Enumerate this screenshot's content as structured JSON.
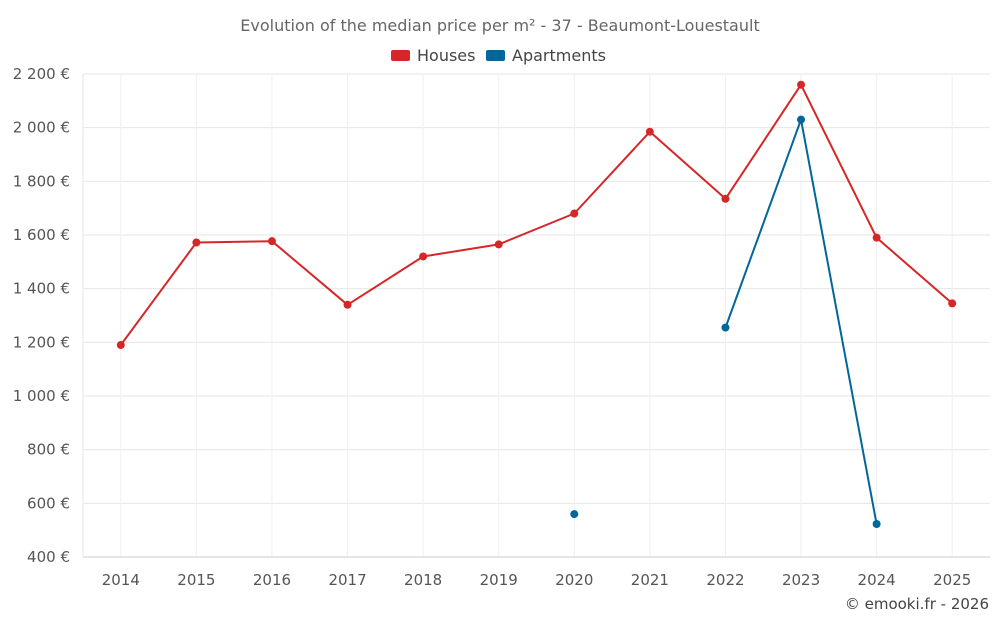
{
  "chart_data": {
    "type": "line",
    "title": "Evolution of the median price per m² - 37 - Beaumont-Louestault",
    "categories": [
      "2014",
      "2015",
      "2016",
      "2017",
      "2018",
      "2019",
      "2020",
      "2021",
      "2022",
      "2023",
      "2024",
      "2025"
    ],
    "y_ticks": [
      400,
      600,
      800,
      1000,
      1200,
      1400,
      1600,
      1800,
      2000,
      2200
    ],
    "y_tick_labels": [
      "400 €",
      "600 €",
      "800 €",
      "1 000 €",
      "1 200 €",
      "1 400 €",
      "1 600 €",
      "1 800 €",
      "2 000 €",
      "2 200 €"
    ],
    "ylim": [
      400,
      2200
    ],
    "grid": true,
    "legend_position": "top-center",
    "series": [
      {
        "name": "Houses",
        "color": "#d62728",
        "values": [
          1190,
          1572,
          1577,
          1340,
          1520,
          1565,
          1680,
          1985,
          1735,
          2160,
          1590,
          1345
        ]
      },
      {
        "name": "Apartments",
        "color": "#00679a",
        "values": [
          null,
          null,
          null,
          null,
          null,
          null,
          560,
          null,
          1255,
          2030,
          523,
          null
        ]
      }
    ],
    "credit": "© emooki.fr - 2026"
  }
}
